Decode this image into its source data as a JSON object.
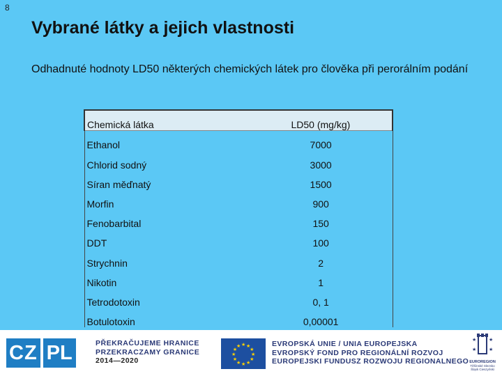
{
  "slide": {
    "number": "8",
    "title": "Vybrané látky a jejich vlastnosti",
    "subtitle": "Odhadnuté hodnoty LD50 některých chemických látek pro člověka při perorálním podání"
  },
  "table": {
    "headers": [
      "Chemická látka",
      "LD50 (mg/kg)"
    ],
    "rows": [
      [
        "Ethanol",
        "7000"
      ],
      [
        "Chlorid sodný",
        "3000"
      ],
      [
        "Síran měďnatý",
        "1500"
      ],
      [
        "Morfin",
        "900"
      ],
      [
        "Fenobarbital",
        "150"
      ],
      [
        "DDT",
        "100"
      ],
      [
        "Strychnin",
        "2"
      ],
      [
        "Nikotin",
        "1"
      ],
      [
        "Tetrodotoxin",
        "0, 1"
      ],
      [
        "Botulotoxin",
        "0,00001"
      ]
    ]
  },
  "footer": {
    "logo_cz": "CZ",
    "logo_pl": "PL",
    "motto": [
      "PŘEKRAČUJEME HRANICE",
      "PRZEKRACZAMY GRANICE",
      "2014—2020"
    ],
    "eu_lines": [
      "EVROPSKÁ UNIE / UNIA EUROPEJSKA",
      "EVROPSKÝ FOND PRO REGIONÁLNÍ ROZVOJ",
      "EUROPEJSKI FUNDUSZ ROZWOJU REGIONALNEGO"
    ],
    "euroregion_name": "EUROREGION",
    "euroregion_sub": [
      "Těšínské Slezsko",
      "Śląsk Cieszyński"
    ]
  }
}
